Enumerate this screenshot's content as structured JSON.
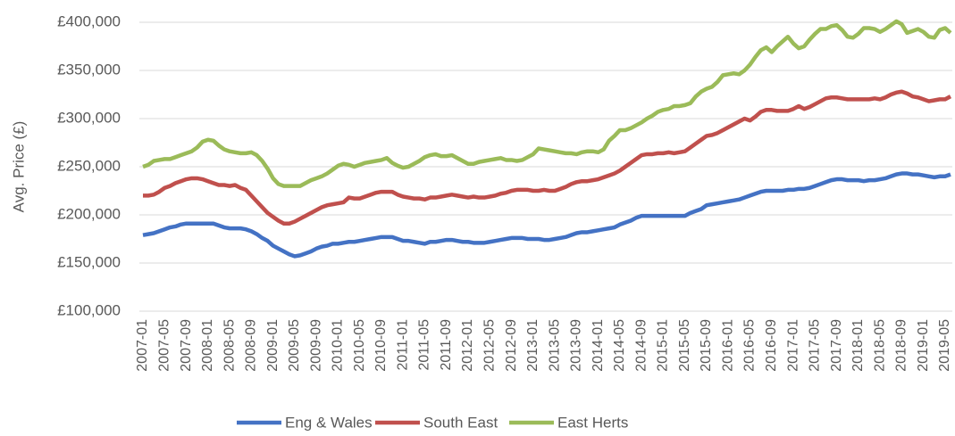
{
  "chart_data": {
    "type": "line",
    "y_label": "Avg. Price (£)",
    "categories": [
      "2007-01",
      null,
      null,
      null,
      "2007-05",
      null,
      null,
      null,
      "2007-09",
      null,
      null,
      null,
      "2008-01",
      null,
      null,
      null,
      "2008-05",
      null,
      null,
      null,
      "2008-09",
      null,
      null,
      null,
      "2009-01",
      null,
      null,
      null,
      "2009-05",
      null,
      null,
      null,
      "2009-09",
      null,
      null,
      null,
      "2010-01",
      null,
      null,
      null,
      "2010-05",
      null,
      null,
      null,
      "2010-09",
      null,
      null,
      null,
      "2011-01",
      null,
      null,
      null,
      "2011-05",
      null,
      null,
      null,
      "2011-09",
      null,
      null,
      null,
      "2012-01",
      null,
      null,
      null,
      "2012-05",
      null,
      null,
      null,
      "2012-09",
      null,
      null,
      null,
      "2013-01",
      null,
      null,
      null,
      "2013-05",
      null,
      null,
      null,
      "2013-09",
      null,
      null,
      null,
      "2014-01",
      null,
      null,
      null,
      "2014-05",
      null,
      null,
      null,
      "2014-09",
      null,
      null,
      null,
      "2015-01",
      null,
      null,
      null,
      "2015-05",
      null,
      null,
      null,
      "2015-09",
      null,
      null,
      null,
      "2016-01",
      null,
      null,
      null,
      "2016-05",
      null,
      null,
      null,
      "2016-09",
      null,
      null,
      null,
      "2017-01",
      null,
      null,
      null,
      "2017-05",
      null,
      null,
      null,
      "2017-09",
      null,
      null,
      null,
      "2018-01",
      null,
      null,
      null,
      "2018-05",
      null,
      null,
      null,
      "2018-09",
      null,
      null,
      null,
      "2019-01",
      null,
      null,
      null,
      "2019-05",
      null
    ],
    "series": [
      {
        "name": "Eng & Wales",
        "color": "#4472c4",
        "values": [
          179000,
          180000,
          181000,
          183000,
          185000,
          187000,
          188000,
          190000,
          191000,
          191000,
          191000,
          191000,
          191000,
          191000,
          189000,
          187000,
          186000,
          186000,
          186000,
          185000,
          183000,
          180000,
          176000,
          173000,
          168000,
          165000,
          162000,
          159000,
          157000,
          158000,
          160000,
          162000,
          165000,
          167000,
          168000,
          170000,
          170000,
          171000,
          172000,
          172000,
          173000,
          174000,
          175000,
          176000,
          177000,
          177000,
          177000,
          175000,
          173000,
          173000,
          172000,
          171000,
          170000,
          172000,
          172000,
          173000,
          174000,
          174000,
          173000,
          172000,
          172000,
          171000,
          171000,
          171000,
          172000,
          173000,
          174000,
          175000,
          176000,
          176000,
          176000,
          175000,
          175000,
          175000,
          174000,
          174000,
          175000,
          176000,
          177000,
          179000,
          181000,
          182000,
          182000,
          183000,
          184000,
          185000,
          186000,
          187000,
          190000,
          192000,
          194000,
          197000,
          199000,
          199000,
          199000,
          199000,
          199000,
          199000,
          199000,
          199000,
          199000,
          202000,
          204000,
          206000,
          210000,
          211000,
          212000,
          213000,
          214000,
          215000,
          216000,
          218000,
          220000,
          222000,
          224000,
          225000,
          225000,
          225000,
          225000,
          226000,
          226000,
          227000,
          227000,
          228000,
          230000,
          232000,
          234000,
          236000,
          237000,
          237000,
          236000,
          236000,
          236000,
          235000,
          236000,
          236000,
          237000,
          238000,
          240000,
          242000,
          243000,
          243000,
          242000,
          242000,
          241000,
          240000,
          239000,
          240000,
          240000,
          242000
        ]
      },
      {
        "name": "South East",
        "color": "#c0504d",
        "values": [
          220000,
          220000,
          221000,
          224000,
          228000,
          230000,
          233000,
          235000,
          237000,
          238000,
          238000,
          237000,
          235000,
          233000,
          231000,
          231000,
          230000,
          231000,
          228000,
          226000,
          220000,
          214000,
          208000,
          202000,
          198000,
          194000,
          191000,
          191000,
          193000,
          196000,
          199000,
          202000,
          205000,
          208000,
          210000,
          211000,
          212000,
          213000,
          218000,
          217000,
          217000,
          219000,
          221000,
          223000,
          224000,
          224000,
          224000,
          221000,
          219000,
          218000,
          217000,
          217000,
          216000,
          218000,
          218000,
          219000,
          220000,
          221000,
          220000,
          219000,
          218000,
          219000,
          218000,
          218000,
          219000,
          220000,
          222000,
          223000,
          225000,
          226000,
          226000,
          226000,
          225000,
          225000,
          226000,
          225000,
          225000,
          227000,
          229000,
          232000,
          234000,
          235000,
          235000,
          236000,
          237000,
          239000,
          241000,
          243000,
          246000,
          250000,
          254000,
          258000,
          262000,
          263000,
          263000,
          264000,
          264000,
          265000,
          264000,
          265000,
          266000,
          270000,
          274000,
          278000,
          282000,
          283000,
          285000,
          288000,
          291000,
          294000,
          297000,
          300000,
          298000,
          302000,
          307000,
          309000,
          309000,
          308000,
          308000,
          308000,
          310000,
          313000,
          310000,
          312000,
          315000,
          318000,
          321000,
          322000,
          322000,
          321000,
          320000,
          320000,
          320000,
          320000,
          320000,
          321000,
          320000,
          322000,
          325000,
          327000,
          328000,
          326000,
          323000,
          322000,
          320000,
          318000,
          319000,
          320000,
          320000,
          323000
        ]
      },
      {
        "name": "East Herts",
        "color": "#9bbb59",
        "values": [
          250000,
          252000,
          256000,
          257000,
          258000,
          258000,
          260000,
          262000,
          264000,
          266000,
          270000,
          276000,
          278000,
          277000,
          272000,
          268000,
          266000,
          265000,
          264000,
          264000,
          265000,
          262000,
          256000,
          248000,
          238000,
          232000,
          230000,
          230000,
          230000,
          230000,
          233000,
          236000,
          238000,
          240000,
          243000,
          247000,
          251000,
          253000,
          252000,
          250000,
          252000,
          254000,
          255000,
          256000,
          257000,
          259000,
          254000,
          251000,
          249000,
          250000,
          253000,
          256000,
          260000,
          262000,
          263000,
          261000,
          261000,
          262000,
          259000,
          256000,
          253000,
          253000,
          255000,
          256000,
          257000,
          258000,
          259000,
          257000,
          257000,
          256000,
          257000,
          260000,
          263000,
          269000,
          268000,
          267000,
          266000,
          265000,
          264000,
          264000,
          263000,
          265000,
          266000,
          266000,
          265000,
          268000,
          277000,
          282000,
          288000,
          288000,
          290000,
          293000,
          296000,
          300000,
          303000,
          307000,
          309000,
          310000,
          313000,
          313000,
          314000,
          316000,
          323000,
          328000,
          331000,
          333000,
          338000,
          345000,
          346000,
          347000,
          346000,
          350000,
          356000,
          364000,
          371000,
          374000,
          369000,
          375000,
          380000,
          385000,
          378000,
          373000,
          375000,
          382000,
          388000,
          393000,
          393000,
          396000,
          397000,
          392000,
          385000,
          384000,
          388000,
          394000,
          394000,
          393000,
          390000,
          393000,
          397000,
          401000,
          398000,
          389000,
          391000,
          393000,
          390000,
          385000,
          384000,
          392000,
          394000,
          389000
        ]
      }
    ],
    "ylim": [
      100000,
      400000
    ],
    "yticks": [
      {
        "value": 100000,
        "label": "£100,000"
      },
      {
        "value": 150000,
        "label": "£150,000"
      },
      {
        "value": 200000,
        "label": "£200,000"
      },
      {
        "value": 250000,
        "label": "£250,000"
      },
      {
        "value": 300000,
        "label": "£300,000"
      },
      {
        "value": 350000,
        "label": "£350,000"
      },
      {
        "value": 400000,
        "label": "£400,000"
      }
    ],
    "grid": true,
    "legend": "bottom"
  }
}
